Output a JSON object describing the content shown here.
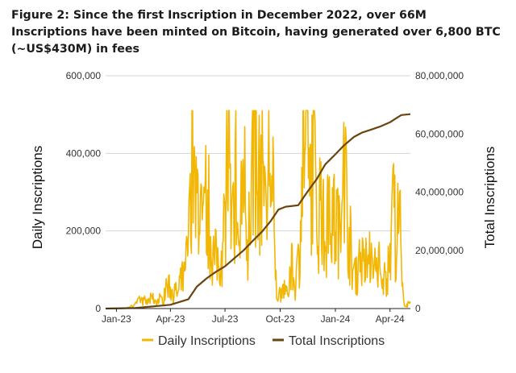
{
  "chart_data": {
    "type": "line",
    "title": "Figure 2: Since the first Inscription in December 2022, over 66M Inscriptions have been minted on Bitcoin, having generated over 6,800 BTC (~US$430M) in fees",
    "x_tick_labels": [
      "Jan-23",
      "Apr-23",
      "Jul-23",
      "Oct-23",
      "Jan-24",
      "Apr-24"
    ],
    "x_range": [
      "2022-12-14",
      "2024-05-05"
    ],
    "y_left": {
      "label": "Daily Inscriptions",
      "range": [
        0,
        600000
      ],
      "tick_labels": [
        "0",
        "200,000",
        "400,000",
        "600,000"
      ]
    },
    "y_right": {
      "label": "Total Inscriptions",
      "range": [
        0,
        80000000
      ],
      "tick_labels": [
        "0",
        "20,000,000",
        "40,000,000",
        "60,000,000",
        "80,000,000"
      ]
    },
    "grid": true,
    "legend_position": "bottom",
    "series": [
      {
        "name": "Daily Inscriptions",
        "axis": "left",
        "color": "#f2b705",
        "points_month_daily": [
          [
            "2022-12-14",
            0
          ],
          [
            "2023-01-15",
            300
          ],
          [
            "2023-01-25",
            4000
          ],
          [
            "2023-02-01",
            10000
          ],
          [
            "2023-02-10",
            25000
          ],
          [
            "2023-02-20",
            15000
          ],
          [
            "2023-03-01",
            28000
          ],
          [
            "2023-03-10",
            20000
          ],
          [
            "2023-03-20",
            25000
          ],
          [
            "2023-03-28",
            70000
          ],
          [
            "2023-04-05",
            35000
          ],
          [
            "2023-04-15",
            45000
          ],
          [
            "2023-04-25",
            90000
          ],
          [
            "2023-05-02",
            200000
          ],
          [
            "2023-05-06",
            380000
          ],
          [
            "2023-05-09",
            400000
          ],
          [
            "2023-05-13",
            250000
          ],
          [
            "2023-05-18",
            350000
          ],
          [
            "2023-05-24",
            200000
          ],
          [
            "2023-06-01",
            260000
          ],
          [
            "2023-06-10",
            150000
          ],
          [
            "2023-06-20",
            130000
          ],
          [
            "2023-06-28",
            140000
          ],
          [
            "2023-07-05",
            390000
          ],
          [
            "2023-07-12",
            200000
          ],
          [
            "2023-07-18",
            330000
          ],
          [
            "2023-07-25",
            150000
          ],
          [
            "2023-08-01",
            420000
          ],
          [
            "2023-08-08",
            160000
          ],
          [
            "2023-08-16",
            400000
          ],
          [
            "2023-08-24",
            300000
          ],
          [
            "2023-09-01",
            420000
          ],
          [
            "2023-09-07",
            200000
          ],
          [
            "2023-09-13",
            450000
          ],
          [
            "2023-09-19",
            250000
          ],
          [
            "2023-09-25",
            40000
          ],
          [
            "2023-10-02",
            30000
          ],
          [
            "2023-10-08",
            60000
          ],
          [
            "2023-10-14",
            25000
          ],
          [
            "2023-10-20",
            120000
          ],
          [
            "2023-10-26",
            50000
          ],
          [
            "2023-11-02",
            150000
          ],
          [
            "2023-11-08",
            420000
          ],
          [
            "2023-11-12",
            510000
          ],
          [
            "2023-11-18",
            300000
          ],
          [
            "2023-11-25",
            450000
          ],
          [
            "2023-12-02",
            200000
          ],
          [
            "2023-12-08",
            350000
          ],
          [
            "2023-12-14",
            150000
          ],
          [
            "2023-12-20",
            300000
          ],
          [
            "2023-12-28",
            200000
          ],
          [
            "2024-01-04",
            250000
          ],
          [
            "2024-01-10",
            150000
          ],
          [
            "2024-01-15",
            500000
          ],
          [
            "2024-01-20",
            250000
          ],
          [
            "2024-01-28",
            120000
          ],
          [
            "2024-02-05",
            90000
          ],
          [
            "2024-02-13",
            140000
          ],
          [
            "2024-02-20",
            100000
          ],
          [
            "2024-02-27",
            150000
          ],
          [
            "2024-03-05",
            80000
          ],
          [
            "2024-03-12",
            120000
          ],
          [
            "2024-03-19",
            50000
          ],
          [
            "2024-03-26",
            90000
          ],
          [
            "2024-04-02",
            120000
          ],
          [
            "2024-04-06",
            250000
          ],
          [
            "2024-04-12",
            170000
          ],
          [
            "2024-04-17",
            230000
          ],
          [
            "2024-04-21",
            60000
          ],
          [
            "2024-04-24",
            20000
          ],
          [
            "2024-04-28",
            8000
          ],
          [
            "2024-05-05",
            12000
          ]
        ]
      },
      {
        "name": "Total Inscriptions",
        "axis": "right",
        "color": "#6b4510",
        "points": [
          [
            "2022-12-14",
            0
          ],
          [
            "2023-02-01",
            200000
          ],
          [
            "2023-03-01",
            700000
          ],
          [
            "2023-04-01",
            1300000
          ],
          [
            "2023-05-01",
            3200000
          ],
          [
            "2023-05-15",
            7500000
          ],
          [
            "2023-06-01",
            10500000
          ],
          [
            "2023-06-15",
            12500000
          ],
          [
            "2023-07-01",
            14500000
          ],
          [
            "2023-07-15",
            17000000
          ],
          [
            "2023-08-01",
            20000000
          ],
          [
            "2023-08-15",
            23000000
          ],
          [
            "2023-09-01",
            26500000
          ],
          [
            "2023-09-15",
            30000000
          ],
          [
            "2023-09-28",
            34000000
          ],
          [
            "2023-10-10",
            35000000
          ],
          [
            "2023-10-31",
            35500000
          ],
          [
            "2023-11-15",
            40000000
          ],
          [
            "2023-12-01",
            44500000
          ],
          [
            "2023-12-15",
            49500000
          ],
          [
            "2024-01-01",
            53000000
          ],
          [
            "2024-01-15",
            56000000
          ],
          [
            "2024-02-01",
            59000000
          ],
          [
            "2024-02-15",
            60500000
          ],
          [
            "2024-03-01",
            61500000
          ],
          [
            "2024-03-15",
            62500000
          ],
          [
            "2024-04-01",
            64000000
          ],
          [
            "2024-04-12",
            65500000
          ],
          [
            "2024-04-20",
            66500000
          ],
          [
            "2024-05-05",
            66800000
          ]
        ]
      }
    ]
  }
}
